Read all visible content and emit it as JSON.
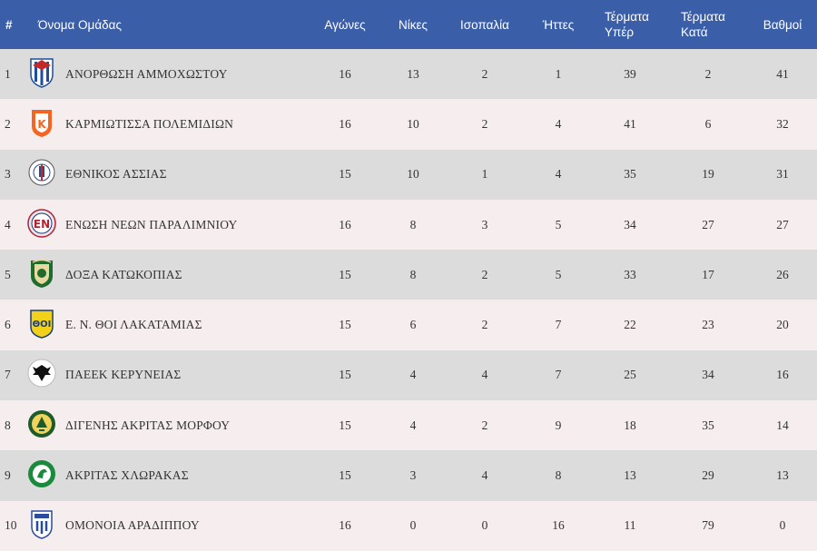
{
  "headers": {
    "num": "#",
    "team": "Όνομα Ομάδας",
    "played": "Αγώνες",
    "wins": "Νίκες",
    "draws": "Ισοπαλία",
    "losses": "Ήττες",
    "goals_for": [
      "Τέρματα",
      "Υπέρ"
    ],
    "goals_against": [
      "Τέρματα",
      "Κατά"
    ],
    "points": "Βαθμοί"
  },
  "rows": [
    {
      "pos": "1",
      "team": "ΑΝΟΡΘΩΣΗ ΑΜΜΟΧΩΣΤΟΥ",
      "played": "16",
      "wins": "13",
      "draws": "2",
      "losses": "1",
      "gf": "39",
      "ga": "2",
      "pts": "41",
      "crest": "anorthosis-crest-icon"
    },
    {
      "pos": "2",
      "team": "ΚΑΡΜΙΩΤΙΣΣΑ ΠΟΛΕΜΙΔΙΩΝ",
      "played": "16",
      "wins": "10",
      "draws": "2",
      "losses": "4",
      "gf": "41",
      "ga": "6",
      "pts": "32",
      "crest": "karmiotissa-crest-icon"
    },
    {
      "pos": "3",
      "team": "ΕΘΝΙΚΟΣ ΑΣΣΙΑΣ",
      "played": "15",
      "wins": "10",
      "draws": "1",
      "losses": "4",
      "gf": "35",
      "ga": "19",
      "pts": "31",
      "crest": "ethnikos-assias-crest-icon"
    },
    {
      "pos": "4",
      "team": "ΕΝΩΣΗ ΝΕΩΝ ΠΑΡΑΛΙΜΝΙΟΥ",
      "played": "16",
      "wins": "8",
      "draws": "3",
      "losses": "5",
      "gf": "34",
      "ga": "27",
      "pts": "27",
      "crest": "enp-crest-icon"
    },
    {
      "pos": "5",
      "team": "ΔΟΞΑ ΚΑΤΩΚΟΠΙΑΣ",
      "played": "15",
      "wins": "8",
      "draws": "2",
      "losses": "5",
      "gf": "33",
      "ga": "17",
      "pts": "26",
      "crest": "doxa-crest-icon"
    },
    {
      "pos": "6",
      "team": "Ε. Ν. ΘΟΙ ΛΑΚΑΤΑΜΙΑΣ",
      "played": "15",
      "wins": "6",
      "draws": "2",
      "losses": "7",
      "gf": "22",
      "ga": "23",
      "pts": "20",
      "crest": "thoi-crest-icon"
    },
    {
      "pos": "7",
      "team": "ΠΑΕΕΚ ΚΕΡΥΝΕΙΑΣ",
      "played": "15",
      "wins": "4",
      "draws": "4",
      "losses": "7",
      "gf": "25",
      "ga": "34",
      "pts": "16",
      "crest": "paeek-crest-icon"
    },
    {
      "pos": "8",
      "team": "ΔΙΓΕΝΗΣ ΑΚΡΙΤΑΣ ΜΟΡΦΟΥ",
      "played": "15",
      "wins": "4",
      "draws": "2",
      "losses": "9",
      "gf": "18",
      "ga": "35",
      "pts": "14",
      "crest": "digenis-crest-icon"
    },
    {
      "pos": "9",
      "team": "ΑΚΡΙΤΑΣ ΧΛΩΡΑΚΑΣ",
      "played": "15",
      "wins": "3",
      "draws": "4",
      "losses": "8",
      "gf": "13",
      "ga": "29",
      "pts": "13",
      "crest": "akritas-crest-icon"
    },
    {
      "pos": "10",
      "team": "ΟΜΟΝΟΙΑ ΑΡΑΔΙΠΠΟΥ",
      "played": "16",
      "wins": "0",
      "draws": "0",
      "losses": "16",
      "gf": "11",
      "ga": "79",
      "pts": "0",
      "crest": "omonoia-aradippou-crest-icon"
    }
  ],
  "colors": {
    "header_bg": "#3a5ea8",
    "row_odd": "#dcdcdc",
    "row_even": "#f6eeee"
  }
}
